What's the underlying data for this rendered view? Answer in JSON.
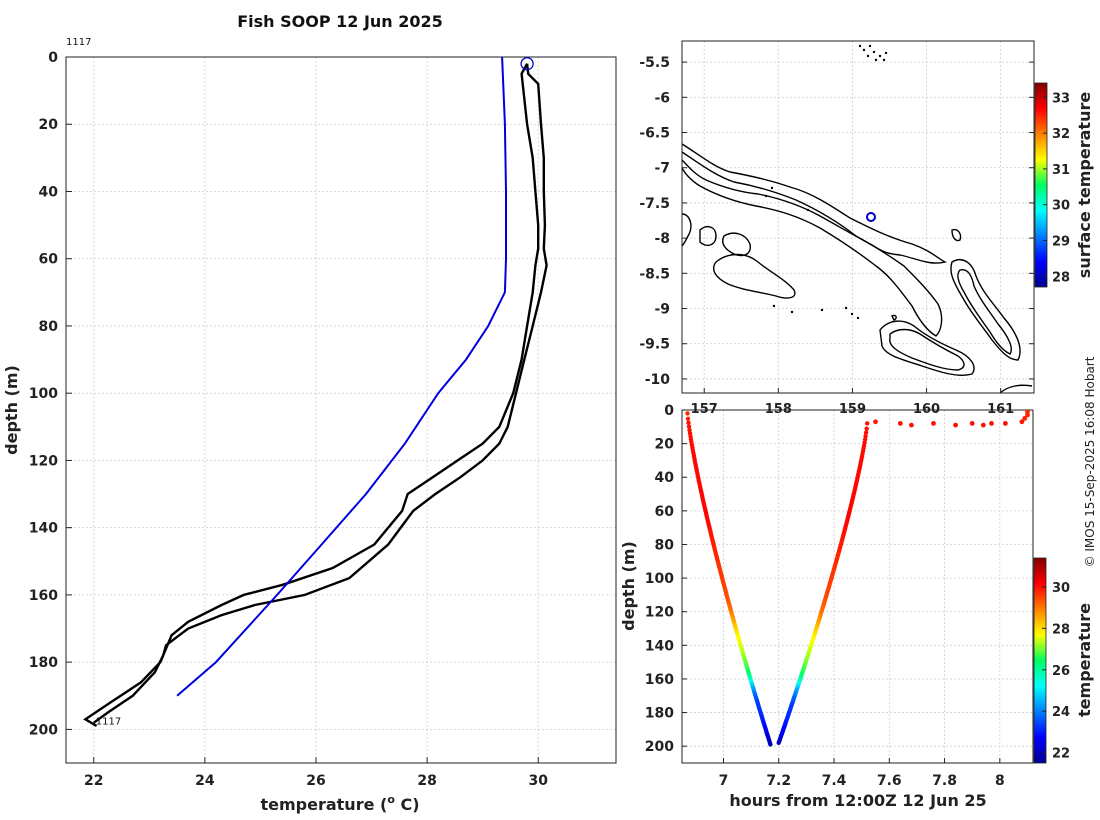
{
  "title": "Fish SOOP 12 Jun 2025",
  "credit": "© IMOS 15-Sep-2025 16:08 Hobart",
  "colors": {
    "profile": "#000000",
    "climatology": "#0000dd",
    "marker": "#0000cc"
  },
  "chart_data": [
    {
      "name": "profile",
      "type": "line",
      "xlabel": "temperature (",
      "xlabel_sup": "o",
      "xlabel_end": " C)",
      "ylabel": "depth (m)",
      "xlim": [
        21.5,
        31.4
      ],
      "ylim": [
        210,
        0
      ],
      "xticks": [
        22,
        24,
        26,
        28,
        30
      ],
      "yticks": [
        0,
        20,
        40,
        60,
        80,
        100,
        120,
        140,
        160,
        180,
        200
      ],
      "annotation_top": "1117",
      "annotation_bottom": "1117",
      "series": [
        {
          "name": "down cast",
          "x": [
            29.8,
            29.82,
            30.0,
            30.05,
            30.1,
            30.1,
            30.12,
            30.1,
            30.15,
            30.05,
            29.9,
            29.75,
            29.6,
            29.45,
            29.3,
            29.0,
            28.6,
            28.15,
            27.75,
            27.3,
            26.6,
            25.8,
            24.9,
            24.3,
            23.7,
            23.3,
            23.25,
            23.1,
            22.7,
            22.25,
            22.0
          ],
          "y": [
            2,
            5,
            8,
            20,
            30,
            40,
            50,
            57,
            62,
            70,
            80,
            90,
            100,
            110,
            115,
            120,
            125,
            130,
            135,
            145,
            155,
            160,
            163,
            166,
            170,
            175,
            178,
            183,
            190,
            195,
            198
          ]
        },
        {
          "name": "up cast",
          "x": [
            29.8,
            29.7,
            29.72,
            29.8,
            29.9,
            29.95,
            30.0,
            30.0,
            29.95,
            29.9,
            29.8,
            29.7,
            29.55,
            29.3,
            29.0,
            28.55,
            28.1,
            27.65,
            27.55,
            27.05,
            26.3,
            25.4,
            24.7,
            24.3,
            23.7,
            23.4,
            23.35,
            23.2,
            22.85,
            22.3,
            21.85,
            22.05
          ],
          "y": [
            2,
            5,
            8,
            20,
            30,
            40,
            50,
            57,
            62,
            70,
            80,
            90,
            100,
            110,
            115,
            120,
            125,
            130,
            135,
            145,
            152,
            157,
            160,
            163,
            168,
            172,
            174,
            180,
            186,
            192,
            197,
            199
          ]
        },
        {
          "name": "climatology",
          "x": [
            29.35,
            29.4,
            29.42,
            29.42,
            29.4,
            29.1,
            28.7,
            28.2,
            27.6,
            26.9,
            26.1,
            25.3,
            24.2,
            23.5
          ],
          "y": [
            0,
            20,
            40,
            60,
            70,
            80,
            90,
            100,
            115,
            130,
            145,
            160,
            180,
            190
          ]
        }
      ],
      "marker": {
        "x": 29.8,
        "y": 2
      }
    },
    {
      "name": "map",
      "type": "map",
      "xlim": [
        156.7,
        161.45
      ],
      "ylim": [
        -10.2,
        -5.2
      ],
      "xticks": [
        157,
        158,
        159,
        160,
        161
      ],
      "yticks": [
        -5.5,
        -6,
        -6.5,
        -7,
        -7.5,
        -8,
        -8.5,
        -9,
        -9.5,
        -10
      ],
      "colorbar_label": "surface temperature",
      "colorbar_range": [
        27.7,
        33.4
      ],
      "colorbar_ticks": [
        28,
        29,
        30,
        31,
        32,
        33
      ],
      "marker": {
        "lon": 159.25,
        "lat": -7.7
      }
    },
    {
      "name": "track",
      "type": "scatter",
      "xlabel": "hours from 12:00Z 12 Jun 25",
      "ylabel": "depth (m)",
      "xlim": [
        6.85,
        8.12
      ],
      "ylim": [
        210,
        0
      ],
      "xticks": [
        7,
        7.2,
        7.4,
        7.6,
        7.8,
        8
      ],
      "yticks": [
        0,
        20,
        40,
        60,
        80,
        100,
        120,
        140,
        160,
        180,
        200
      ],
      "colorbar_label": "temperature",
      "colorbar_range": [
        21.5,
        31.4
      ],
      "colorbar_ticks": [
        22,
        24,
        26,
        28,
        30
      ],
      "down": {
        "t0": 6.87,
        "t1": 7.17,
        "z0": 2,
        "z1": 199
      },
      "up": {
        "t0": 7.2,
        "t1": 7.52,
        "z0": 198,
        "z1": 8
      },
      "surface_points": [
        {
          "t": 7.55,
          "z": 7
        },
        {
          "t": 7.64,
          "z": 8
        },
        {
          "t": 7.68,
          "z": 9
        },
        {
          "t": 7.76,
          "z": 8
        },
        {
          "t": 7.84,
          "z": 9
        },
        {
          "t": 7.9,
          "z": 8
        },
        {
          "t": 7.94,
          "z": 9
        },
        {
          "t": 7.97,
          "z": 8
        },
        {
          "t": 8.02,
          "z": 8
        },
        {
          "t": 8.08,
          "z": 7
        },
        {
          "t": 8.09,
          "z": 5
        },
        {
          "t": 8.1,
          "z": 3
        },
        {
          "t": 8.1,
          "z": 1
        }
      ]
    }
  ]
}
